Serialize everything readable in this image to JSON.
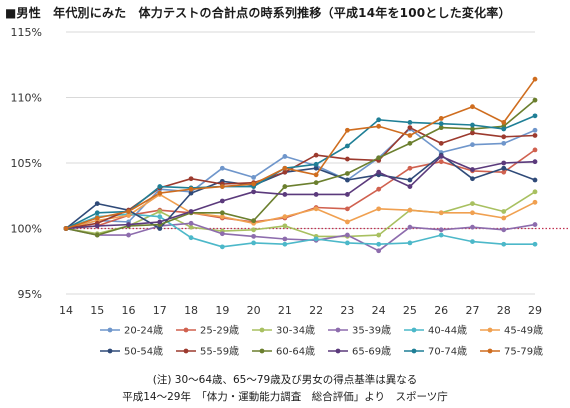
{
  "title": "■男性　年代別にみた　体力テストの合計点の時系列推移（平成14年を100とした変化率）",
  "notes": {
    "line1": "(注) 30～64歳、65～79歳及び男女の得点基準は異なる",
    "line2": "平成14～29年　「体力・運動能力調査　総合評価」より　スポーツ庁"
  },
  "chart_data": {
    "type": "line",
    "title": "■男性　年代別にみた　体力テストの合計点の時系列推移（平成14年を100とした変化率）",
    "xlabel": "",
    "ylabel": "",
    "x": [
      14,
      15,
      16,
      17,
      18,
      19,
      20,
      21,
      22,
      23,
      24,
      25,
      26,
      27,
      28,
      29
    ],
    "ylim": [
      95,
      115
    ],
    "yticks": [
      95,
      100,
      105,
      110,
      115
    ],
    "ytick_labels": [
      "95%",
      "100%",
      "105%",
      "110%",
      "115%"
    ],
    "baseline": 100,
    "grid": true,
    "legend_position": "bottom",
    "series": [
      {
        "name": "20-24歳",
        "color": "#6f96cb",
        "values": [
          100,
          100.6,
          100.5,
          103,
          102.8,
          104.6,
          103.9,
          105.5,
          104.8,
          103.7,
          105.4,
          107.6,
          105.8,
          106.4,
          106.5,
          107.5
        ]
      },
      {
        "name": "25-29歳",
        "color": "#d0614f",
        "values": [
          100,
          100.2,
          101,
          101.4,
          101.2,
          100.8,
          100.5,
          100.8,
          101.6,
          101.5,
          103,
          104.6,
          105.1,
          104.4,
          104.3,
          106
        ]
      },
      {
        "name": "30-34歳",
        "color": "#a8c060",
        "values": [
          100,
          99.6,
          100.2,
          101.3,
          100.1,
          99.8,
          99.9,
          100.2,
          99.4,
          99.4,
          99.5,
          101.4,
          101.2,
          101.9,
          101.3,
          102.8
        ]
      },
      {
        "name": "35-39歳",
        "color": "#8d6cad",
        "values": [
          100,
          99.5,
          99.5,
          100.2,
          100.4,
          99.6,
          99.4,
          99.2,
          99.1,
          99.5,
          98.3,
          100.1,
          99.9,
          100.1,
          99.9,
          100.3
        ]
      },
      {
        "name": "40-44歳",
        "color": "#4cb8c9",
        "values": [
          100,
          100.9,
          101.1,
          100.9,
          99.3,
          98.6,
          98.9,
          98.8,
          99.2,
          98.9,
          98.8,
          98.9,
          99.5,
          99,
          98.8,
          98.8
        ]
      },
      {
        "name": "45-49歳",
        "color": "#f0a050",
        "values": [
          100,
          100.6,
          101,
          102.6,
          101.2,
          100.9,
          100.4,
          100.9,
          101.5,
          100.5,
          101.5,
          101.4,
          101.2,
          101.2,
          100.8,
          102
        ]
      },
      {
        "name": "50-54歳",
        "color": "#2f4a78",
        "values": [
          100,
          101.9,
          101.4,
          100,
          102.7,
          103.6,
          103.3,
          104.3,
          104.6,
          103.7,
          104.1,
          103.7,
          105.6,
          103.8,
          104.6,
          103.7
        ]
      },
      {
        "name": "55-59歳",
        "color": "#9c3a2e",
        "values": [
          100,
          100.4,
          101.4,
          103.1,
          103.8,
          103.4,
          103.5,
          104.3,
          105.6,
          105.3,
          105.2,
          107.7,
          106.5,
          107.3,
          107,
          107.1
        ]
      },
      {
        "name": "60-64歳",
        "color": "#6b7f2e",
        "values": [
          100,
          99.5,
          100.2,
          100.3,
          101.2,
          101.2,
          100.6,
          103.2,
          103.5,
          104.2,
          105.4,
          106.5,
          107.7,
          107.6,
          107.8,
          109.8
        ]
      },
      {
        "name": "65-69歳",
        "color": "#5b3a7c",
        "values": [
          100,
          100.2,
          100.3,
          100.5,
          101.3,
          102.1,
          102.8,
          102.6,
          102.6,
          102.6,
          104.3,
          103.2,
          105.5,
          104.5,
          105,
          105.1
        ]
      },
      {
        "name": "70-74歳",
        "color": "#1f7f96",
        "values": [
          100,
          101.2,
          101.3,
          103.2,
          103.1,
          103.2,
          103.2,
          104.6,
          104.9,
          106.3,
          108.3,
          108.1,
          108,
          107.9,
          107.6,
          108.6
        ]
      },
      {
        "name": "75-79歳",
        "color": "#cf6d1f",
        "values": [
          100,
          100.8,
          101.3,
          102.7,
          103,
          103.2,
          103.4,
          104.6,
          104.1,
          107.5,
          107.8,
          107.1,
          108.4,
          109.3,
          108.1,
          111.4
        ]
      }
    ]
  }
}
